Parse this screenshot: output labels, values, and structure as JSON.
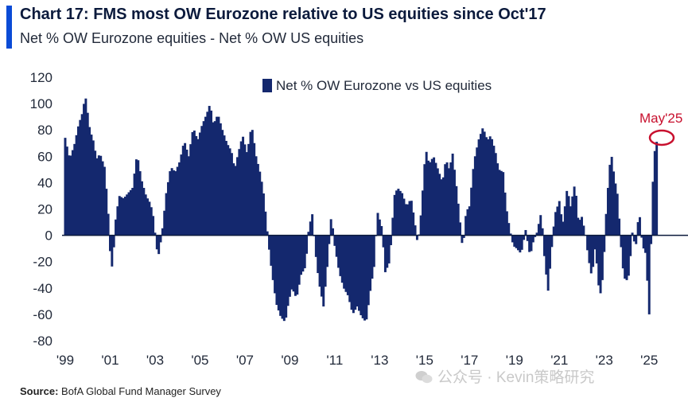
{
  "title": "Chart 17: FMS most OW Eurozone relative to US equities since Oct'17",
  "subtitle": "Net % OW Eurozone equities - Net % OW US equities",
  "source_label": "Source:",
  "source_text": "BofA Global Fund Manager Survey",
  "watermark": "公众号 · Kevin策略研究",
  "annotation": "May'25",
  "colors": {
    "bar": "#14286e",
    "accent": "#0a4bd6",
    "annotation": "#c8102e",
    "zero_line": "#0b1a3c"
  },
  "chart_data": {
    "type": "bar",
    "legend": "Net % OW Eurozone vs US equities",
    "legend_position": "top-center",
    "grid": false,
    "ylim": [
      -80,
      120
    ],
    "yticks": [
      120,
      100,
      80,
      60,
      40,
      20,
      0,
      -20,
      -40,
      -60,
      -80
    ],
    "xlim": [
      1999.0,
      2025.7
    ],
    "xticks": [
      {
        "label": "'99",
        "value": 1999
      },
      {
        "label": "'01",
        "value": 2001
      },
      {
        "label": "'03",
        "value": 2003
      },
      {
        "label": "'05",
        "value": 2005
      },
      {
        "label": "'07",
        "value": 2007
      },
      {
        "label": "'09",
        "value": 2009
      },
      {
        "label": "'11",
        "value": 2011
      },
      {
        "label": "'13",
        "value": 2013
      },
      {
        "label": "'15",
        "value": 2015
      },
      {
        "label": "'17",
        "value": 2017
      },
      {
        "label": "'19",
        "value": 2019
      },
      {
        "label": "'21",
        "value": 2021
      },
      {
        "label": "'23",
        "value": 2023
      },
      {
        "label": "'25",
        "value": 2025
      }
    ],
    "anchors": [
      [
        1999.0,
        74
      ],
      [
        1999.2,
        58
      ],
      [
        1999.4,
        68
      ],
      [
        1999.6,
        84
      ],
      [
        1999.75,
        92
      ],
      [
        1999.9,
        106
      ],
      [
        2000.1,
        80
      ],
      [
        2000.25,
        72
      ],
      [
        2000.4,
        58
      ],
      [
        2000.55,
        62
      ],
      [
        2000.75,
        52
      ],
      [
        2000.9,
        22
      ],
      [
        2001.0,
        -12
      ],
      [
        2001.1,
        -26
      ],
      [
        2001.25,
        12
      ],
      [
        2001.4,
        30
      ],
      [
        2001.6,
        28
      ],
      [
        2001.8,
        32
      ],
      [
        2002.0,
        36
      ],
      [
        2002.2,
        62
      ],
      [
        2002.4,
        42
      ],
      [
        2002.6,
        30
      ],
      [
        2002.8,
        24
      ],
      [
        2002.95,
        12
      ],
      [
        2003.05,
        -8
      ],
      [
        2003.15,
        -16
      ],
      [
        2003.3,
        0
      ],
      [
        2003.5,
        32
      ],
      [
        2003.7,
        52
      ],
      [
        2003.9,
        48
      ],
      [
        2004.1,
        56
      ],
      [
        2004.3,
        72
      ],
      [
        2004.5,
        60
      ],
      [
        2004.7,
        82
      ],
      [
        2004.9,
        72
      ],
      [
        2005.1,
        84
      ],
      [
        2005.3,
        92
      ],
      [
        2005.45,
        100
      ],
      [
        2005.6,
        84
      ],
      [
        2005.8,
        92
      ],
      [
        2006.0,
        80
      ],
      [
        2006.2,
        70
      ],
      [
        2006.4,
        64
      ],
      [
        2006.55,
        50
      ],
      [
        2006.7,
        62
      ],
      [
        2006.9,
        76
      ],
      [
        2007.1,
        62
      ],
      [
        2007.3,
        84
      ],
      [
        2007.5,
        60
      ],
      [
        2007.7,
        46
      ],
      [
        2007.85,
        30
      ],
      [
        2008.05,
        -6
      ],
      [
        2008.2,
        -28
      ],
      [
        2008.4,
        -52
      ],
      [
        2008.6,
        -62
      ],
      [
        2008.8,
        -66
      ],
      [
        2008.95,
        -50
      ],
      [
        2009.1,
        -40
      ],
      [
        2009.3,
        -48
      ],
      [
        2009.5,
        -30
      ],
      [
        2009.7,
        -24
      ],
      [
        2009.85,
        6
      ],
      [
        2010.0,
        16
      ],
      [
        2010.15,
        -14
      ],
      [
        2010.3,
        -36
      ],
      [
        2010.5,
        -54
      ],
      [
        2010.7,
        -18
      ],
      [
        2010.85,
        16
      ],
      [
        2011.0,
        -8
      ],
      [
        2011.2,
        -28
      ],
      [
        2011.4,
        -40
      ],
      [
        2011.6,
        -46
      ],
      [
        2011.8,
        -60
      ],
      [
        2012.0,
        -54
      ],
      [
        2012.2,
        -62
      ],
      [
        2012.4,
        -66
      ],
      [
        2012.6,
        -40
      ],
      [
        2012.75,
        -24
      ],
      [
        2012.9,
        18
      ],
      [
        2013.1,
        6
      ],
      [
        2013.25,
        -28
      ],
      [
        2013.45,
        -20
      ],
      [
        2013.65,
        30
      ],
      [
        2013.8,
        36
      ],
      [
        2014.0,
        32
      ],
      [
        2014.2,
        22
      ],
      [
        2014.4,
        28
      ],
      [
        2014.55,
        12
      ],
      [
        2014.7,
        -8
      ],
      [
        2014.85,
        18
      ],
      [
        2015.05,
        66
      ],
      [
        2015.2,
        54
      ],
      [
        2015.4,
        60
      ],
      [
        2015.6,
        50
      ],
      [
        2015.8,
        40
      ],
      [
        2015.95,
        58
      ],
      [
        2016.1,
        50
      ],
      [
        2016.25,
        62
      ],
      [
        2016.4,
        40
      ],
      [
        2016.55,
        16
      ],
      [
        2016.7,
        -12
      ],
      [
        2016.85,
        18
      ],
      [
        2017.0,
        22
      ],
      [
        2017.2,
        56
      ],
      [
        2017.4,
        72
      ],
      [
        2017.6,
        82
      ],
      [
        2017.8,
        72
      ],
      [
        2017.95,
        76
      ],
      [
        2018.15,
        64
      ],
      [
        2018.3,
        50
      ],
      [
        2018.5,
        48
      ],
      [
        2018.65,
        20
      ],
      [
        2018.8,
        4
      ],
      [
        2018.95,
        -8
      ],
      [
        2019.1,
        -10
      ],
      [
        2019.3,
        -14
      ],
      [
        2019.5,
        4
      ],
      [
        2019.7,
        -16
      ],
      [
        2019.85,
        -4
      ],
      [
        2020.0,
        2
      ],
      [
        2020.2,
        18
      ],
      [
        2020.35,
        -20
      ],
      [
        2020.5,
        -42
      ],
      [
        2020.65,
        -12
      ],
      [
        2020.8,
        16
      ],
      [
        2021.0,
        26
      ],
      [
        2021.15,
        8
      ],
      [
        2021.35,
        36
      ],
      [
        2021.5,
        22
      ],
      [
        2021.7,
        40
      ],
      [
        2021.85,
        10
      ],
      [
        2022.0,
        14
      ],
      [
        2022.15,
        2
      ],
      [
        2022.3,
        -18
      ],
      [
        2022.45,
        -32
      ],
      [
        2022.6,
        -8
      ],
      [
        2022.8,
        -48
      ],
      [
        2022.95,
        -30
      ],
      [
        2023.1,
        22
      ],
      [
        2023.3,
        64
      ],
      [
        2023.45,
        44
      ],
      [
        2023.6,
        30
      ],
      [
        2023.8,
        -22
      ],
      [
        2023.95,
        -36
      ],
      [
        2024.1,
        -30
      ],
      [
        2024.25,
        2
      ],
      [
        2024.4,
        -10
      ],
      [
        2024.55,
        20
      ],
      [
        2024.7,
        -8
      ],
      [
        2024.85,
        -14
      ],
      [
        2025.0,
        -60
      ],
      [
        2025.15,
        36
      ],
      [
        2025.25,
        64
      ],
      [
        2025.37,
        74
      ]
    ]
  }
}
